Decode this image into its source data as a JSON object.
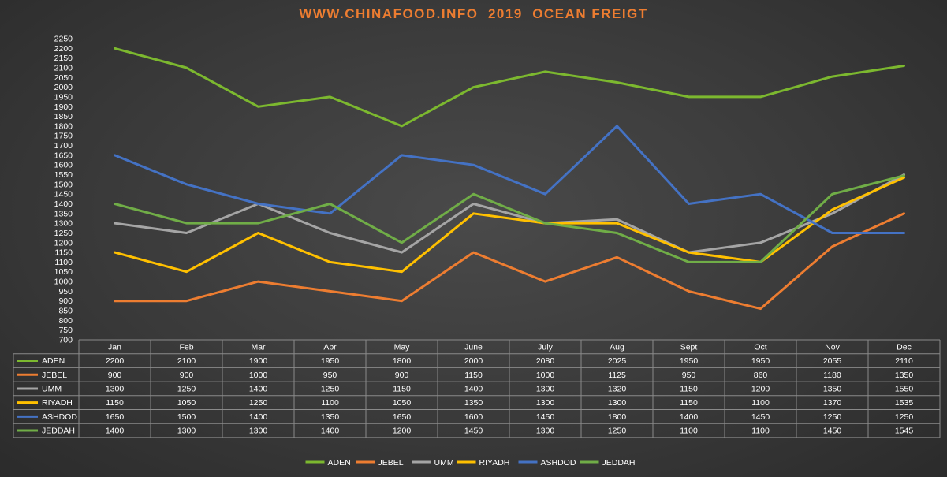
{
  "title": "WWW.CHINAFOOD.INFO  2019  OCEAN FREIGT",
  "colors": {
    "title": "#ED7D31",
    "ADEN": "#7CB82F",
    "JEBEL": "#ED7D31",
    "UMM": "#A5A5A5",
    "RIYADH": "#FFC000",
    "ASHDOD": "#4472C4",
    "JEDDAH": "#70AD47",
    "grid": "#5f5f5f",
    "table_border": "#8a8a8a"
  },
  "chart_data": {
    "type": "line",
    "title": "WWW.CHINAFOOD.INFO  2019  OCEAN FREIGT",
    "xlabel": "",
    "ylabel": "",
    "categories": [
      "Jan",
      "Feb",
      "Mar",
      "Apr",
      "May",
      "June",
      "July",
      "Aug",
      "Sept",
      "Oct",
      "Nov",
      "Dec"
    ],
    "ylim": [
      700,
      2250
    ],
    "ytick_step": 50,
    "grid": false,
    "legend_position": "bottom",
    "data_table": true,
    "series": [
      {
        "name": "ADEN",
        "values": [
          2200,
          2100,
          1900,
          1950,
          1800,
          2000,
          2080,
          2025,
          1950,
          1950,
          2055,
          2110
        ]
      },
      {
        "name": "JEBEL",
        "values": [
          900,
          900,
          1000,
          950,
          900,
          1150,
          1000,
          1125,
          950,
          860,
          1180,
          1350
        ]
      },
      {
        "name": "UMM",
        "values": [
          1300,
          1250,
          1400,
          1250,
          1150,
          1400,
          1300,
          1320,
          1150,
          1200,
          1350,
          1550
        ]
      },
      {
        "name": "RIYADH",
        "values": [
          1150,
          1050,
          1250,
          1100,
          1050,
          1350,
          1300,
          1300,
          1150,
          1100,
          1370,
          1535
        ]
      },
      {
        "name": "ASHDOD",
        "values": [
          1650,
          1500,
          1400,
          1350,
          1650,
          1600,
          1450,
          1800,
          1400,
          1450,
          1250,
          1250
        ]
      },
      {
        "name": "JEDDAH",
        "values": [
          1400,
          1300,
          1300,
          1400,
          1200,
          1450,
          1300,
          1250,
          1100,
          1100,
          1450,
          1545
        ]
      }
    ]
  }
}
